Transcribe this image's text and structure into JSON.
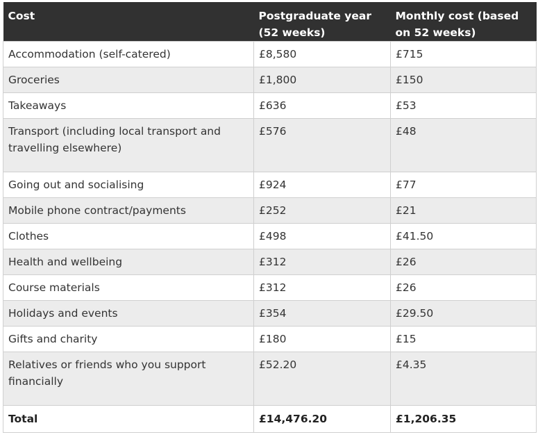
{
  "table": {
    "headers": [
      "Cost",
      "Postgraduate year (52 weeks)",
      "Monthly cost (based on 52 weeks)"
    ],
    "rows": [
      [
        "Accommodation (self-catered)",
        "£8,580",
        "£715"
      ],
      [
        "Groceries",
        "£1,800",
        "£150"
      ],
      [
        "Takeaways",
        "£636",
        "£53"
      ],
      [
        "Transport (including local transport and travelling elsewhere)",
        "£576",
        "£48"
      ],
      [
        "Going out and socialising",
        "£924",
        "£77"
      ],
      [
        "Mobile phone contract/payments",
        "£252",
        "£21"
      ],
      [
        "Clothes",
        "£498",
        "£41.50"
      ],
      [
        "Health and wellbeing",
        "£312",
        "£26"
      ],
      [
        "Course materials",
        "£312",
        "£26"
      ],
      [
        "Holidays and events",
        "£354",
        "£29.50"
      ],
      [
        "Gifts and charity",
        "£180",
        "£15"
      ],
      [
        "Relatives or friends who you support financially",
        "£52.20",
        "£4.35"
      ],
      [
        "Total",
        "£14,476.20",
        "£1,206.35"
      ]
    ]
  }
}
